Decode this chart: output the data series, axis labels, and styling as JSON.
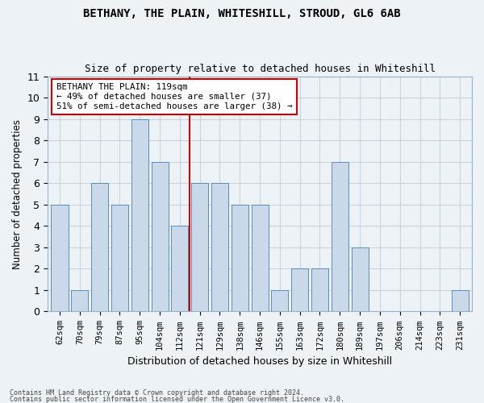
{
  "title": "BETHANY, THE PLAIN, WHITESHILL, STROUD, GL6 6AB",
  "subtitle": "Size of property relative to detached houses in Whiteshill",
  "xlabel": "Distribution of detached houses by size in Whiteshill",
  "ylabel": "Number of detached properties",
  "categories": [
    "62sqm",
    "70sqm",
    "79sqm",
    "87sqm",
    "95sqm",
    "104sqm",
    "112sqm",
    "121sqm",
    "129sqm",
    "138sqm",
    "146sqm",
    "155sqm",
    "163sqm",
    "172sqm",
    "180sqm",
    "189sqm",
    "197sqm",
    "206sqm",
    "214sqm",
    "223sqm",
    "231sqm"
  ],
  "values": [
    5,
    1,
    6,
    5,
    9,
    7,
    4,
    6,
    6,
    5,
    5,
    1,
    2,
    2,
    7,
    3,
    0,
    0,
    0,
    0,
    1
  ],
  "bar_color": "#c9d9ea",
  "bar_edge_color": "#5b8db8",
  "vline_x": 7,
  "vline_color": "#cc0000",
  "annotation_text": "BETHANY THE PLAIN: 119sqm\n← 49% of detached houses are smaller (37)\n51% of semi-detached houses are larger (38) →",
  "annotation_box_color": "#ffffff",
  "annotation_box_edge": "#cc0000",
  "ylim": [
    0,
    11
  ],
  "yticks": [
    0,
    1,
    2,
    3,
    4,
    5,
    6,
    7,
    8,
    9,
    10,
    11
  ],
  "grid_color": "#c8d4e0",
  "background_color": "#edf2f7",
  "footer1": "Contains HM Land Registry data © Crown copyright and database right 2024.",
  "footer2": "Contains public sector information licensed under the Open Government Licence v3.0."
}
